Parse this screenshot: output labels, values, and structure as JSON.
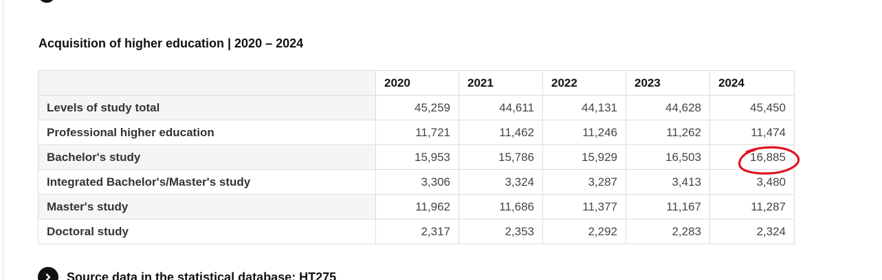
{
  "title": "Acquisition of higher education | 2020 – 2024",
  "table": {
    "years": [
      "2020",
      "2021",
      "2022",
      "2023",
      "2024"
    ],
    "rows": [
      {
        "label": "Levels of study total",
        "values": [
          "45,259",
          "44,611",
          "44,131",
          "44,628",
          "45,450"
        ]
      },
      {
        "label": "Professional higher education",
        "values": [
          "11,721",
          "11,462",
          "11,246",
          "11,262",
          "11,474"
        ]
      },
      {
        "label": "Bachelor's study",
        "values": [
          "15,953",
          "15,786",
          "15,929",
          "16,503",
          "16,885"
        ]
      },
      {
        "label": "Integrated Bachelor's/Master's study",
        "values": [
          "3,306",
          "3,324",
          "3,287",
          "3,413",
          "3,480"
        ]
      },
      {
        "label": "Master's study",
        "values": [
          "11,962",
          "11,686",
          "11,377",
          "11,167",
          "11,287"
        ]
      },
      {
        "label": "Doctoral study",
        "values": [
          "2,317",
          "2,353",
          "2,292",
          "2,283",
          "2,324"
        ]
      }
    ]
  },
  "annotation": {
    "color": "#e0141e",
    "target": "Bachelor's study 2024"
  },
  "source_link": {
    "text": "Source data in the statistical database: HT275",
    "icon": "chevron-right-icon"
  }
}
